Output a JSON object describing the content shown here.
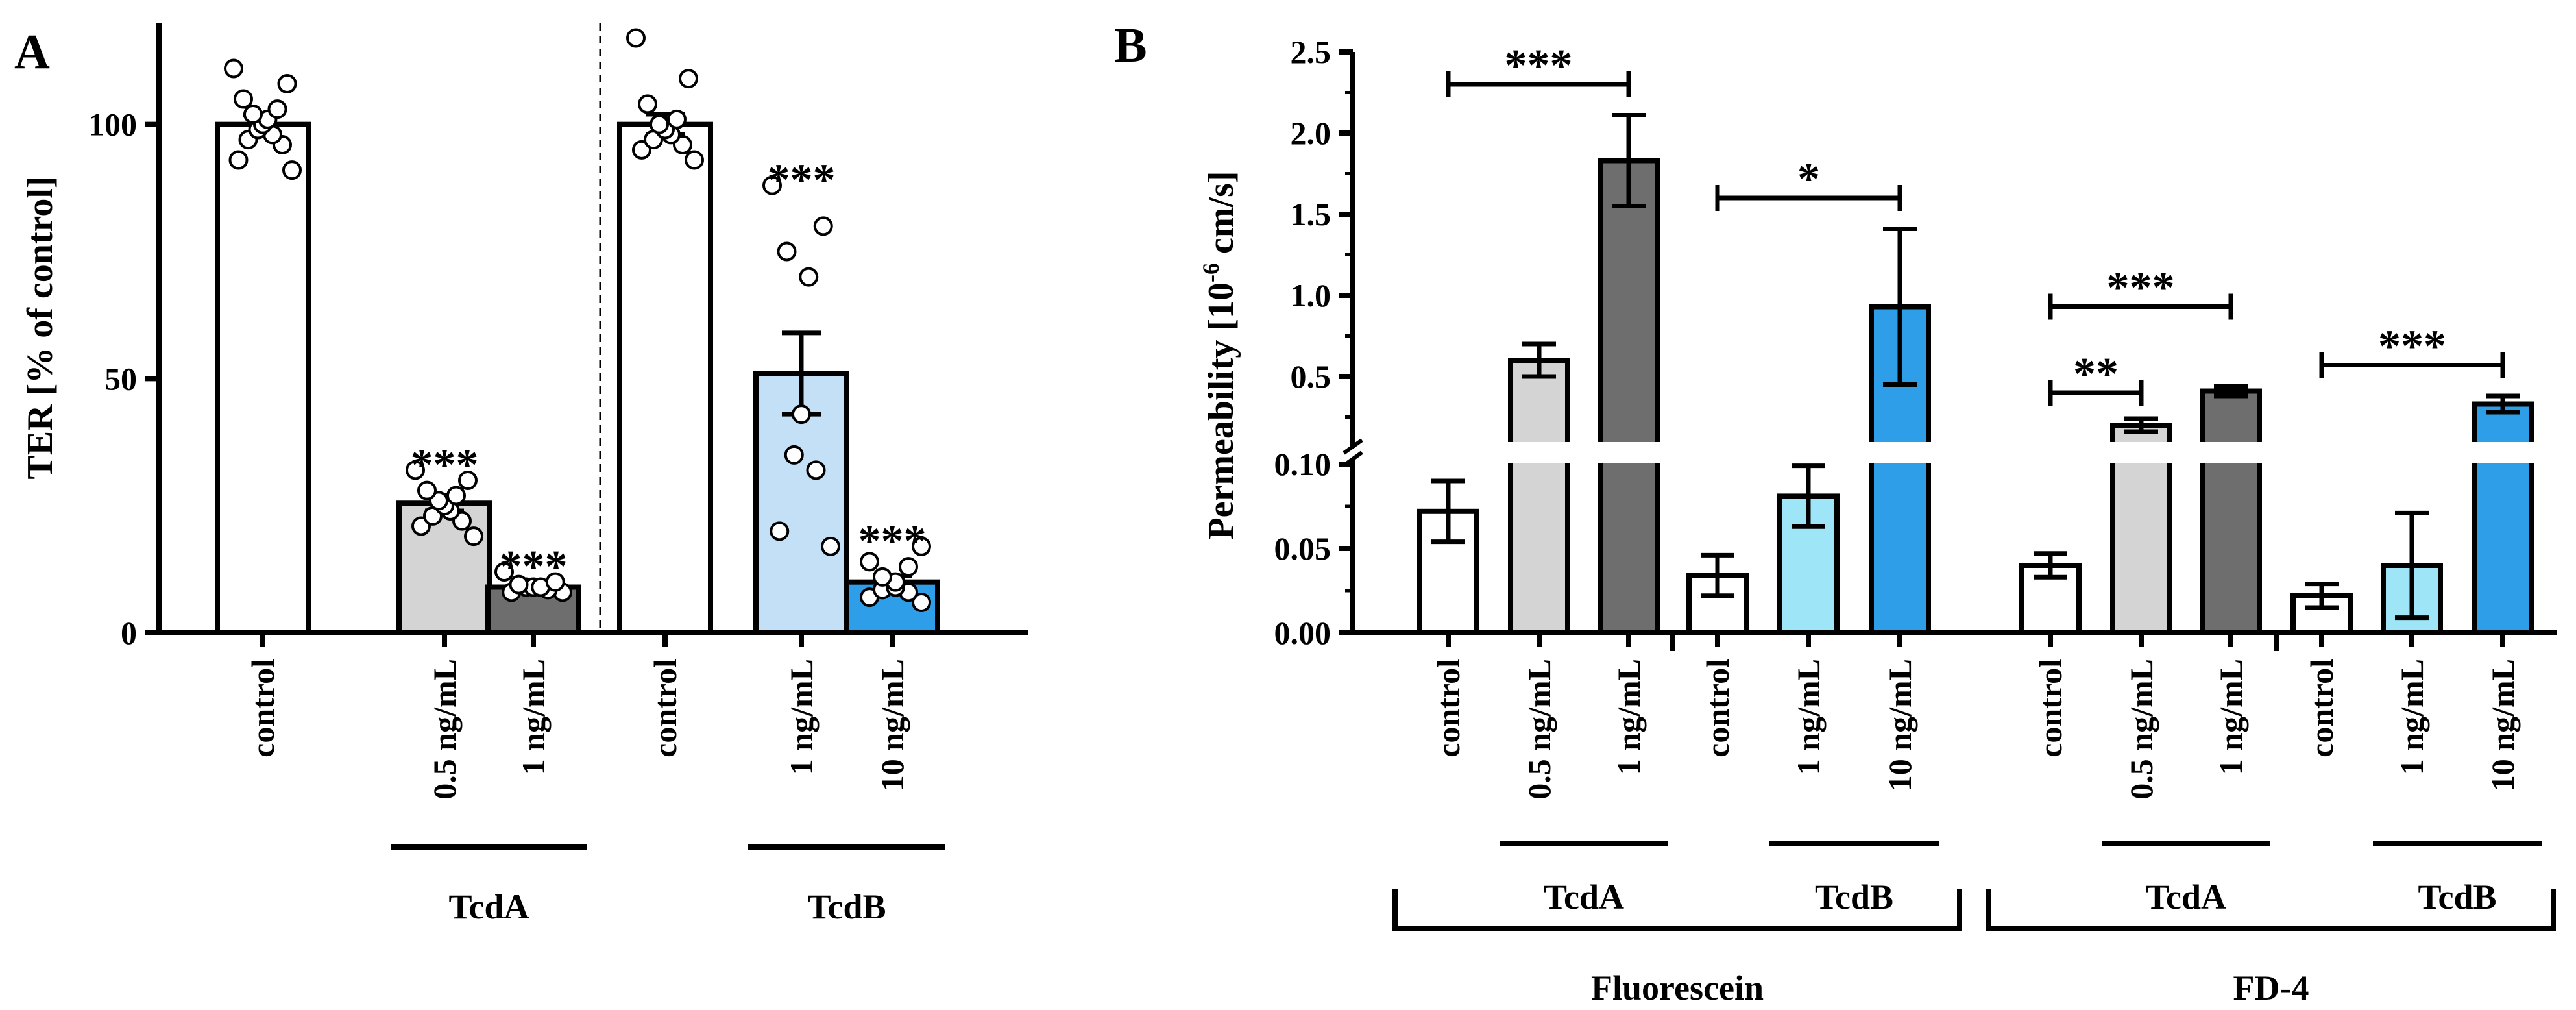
{
  "chart_data": [
    {
      "panel": "A",
      "type": "bar",
      "ylabel": "TER [% of control]",
      "ylim": [
        0,
        120
      ],
      "yticks": [
        0,
        50,
        100
      ],
      "groups": [
        {
          "label": "TcdA",
          "members": [
            1,
            2
          ]
        },
        {
          "label": "TcdB",
          "members": [
            4,
            5
          ]
        }
      ],
      "bars": [
        {
          "category": "control",
          "value": 100,
          "sem": 1.8,
          "color": "#ffffff",
          "points": [
            91,
            93,
            96,
            97,
            98,
            99,
            100,
            101,
            102,
            103,
            105,
            108,
            111
          ]
        },
        {
          "category": "0.5 ng/mL",
          "value": 25.5,
          "sem": 1.5,
          "color": "#d4d4d4",
          "sig": "***",
          "points": [
            19,
            21,
            22,
            23,
            24,
            25,
            26,
            27,
            28,
            30,
            32
          ]
        },
        {
          "category": "1 ng/mL",
          "value": 9,
          "sem": 0.6,
          "color": "#6e6e6e",
          "sig": "***",
          "points": [
            8,
            8,
            8.5,
            9,
            9,
            9,
            9.5,
            10,
            12
          ]
        },
        {
          "category": "control",
          "value": 100,
          "sem": 2.0,
          "color": "#ffffff",
          "points": [
            93,
            95,
            96,
            97,
            98,
            99,
            100,
            101,
            104,
            109,
            117
          ]
        },
        {
          "category": "1 ng/mL",
          "value": 51,
          "sem": 8,
          "color": "#c4e0f7",
          "sig": "***",
          "points": [
            17,
            20,
            32,
            35,
            43,
            70,
            75,
            80,
            88
          ]
        },
        {
          "category": "10 ng/mL",
          "value": 10,
          "sem": 1.2,
          "color": "#2f9ee8",
          "sig": "***",
          "points": [
            6,
            7,
            8,
            8.5,
            9,
            10,
            11,
            13,
            14,
            17
          ]
        }
      ]
    },
    {
      "panel": "B",
      "type": "bar",
      "ylabel": "Permeability [10",
      "ylabel_exp": "-6",
      "ylabel_unit": " cm/s]",
      "y_break": {
        "lower_range": [
          0,
          0.1
        ],
        "upper_range": [
          0.1,
          2.5
        ]
      },
      "yticks_lower": [
        "0.00",
        "0.05",
        "0.10"
      ],
      "yticks_upper": [
        "0.5",
        "1.0",
        "1.5",
        "2.0",
        "2.5"
      ],
      "tracers": [
        {
          "label": "Fluorescein",
          "members": [
            0,
            1,
            2,
            3,
            4,
            5
          ]
        },
        {
          "label": "FD-4",
          "members": [
            6,
            7,
            8,
            9,
            10,
            11
          ]
        }
      ],
      "toxin_groups": [
        {
          "label": "TcdA",
          "members": [
            1,
            2
          ]
        },
        {
          "label": "TcdB",
          "members": [
            4,
            5
          ]
        },
        {
          "label": "TcdA",
          "members": [
            7,
            8
          ]
        },
        {
          "label": "TcdB",
          "members": [
            10,
            11
          ]
        }
      ],
      "bars": [
        {
          "category": "control",
          "value": 0.072,
          "err": 0.018,
          "color": "#ffffff"
        },
        {
          "category": "0.5 ng/mL",
          "value": 0.6,
          "err": 0.1,
          "color": "#d4d4d4"
        },
        {
          "category": "1 ng/mL",
          "value": 1.83,
          "err": 0.28,
          "color": "#6e6e6e"
        },
        {
          "category": "control",
          "value": 0.034,
          "err": 0.012,
          "color": "#ffffff"
        },
        {
          "category": "1 ng/mL",
          "value": 0.081,
          "err": 0.018,
          "color": "#9ee6f7"
        },
        {
          "category": "10 ng/mL",
          "value": 0.93,
          "err": 0.48,
          "color": "#2f9ee8"
        },
        {
          "category": "control",
          "value": 0.04,
          "err": 0.007,
          "color": "#ffffff"
        },
        {
          "category": "0.5 ng/mL",
          "value": 0.2,
          "err": 0.04,
          "color": "#d4d4d4"
        },
        {
          "category": "1 ng/mL",
          "value": 0.41,
          "err": 0.03,
          "color": "#6e6e6e"
        },
        {
          "category": "control",
          "value": 0.022,
          "err": 0.007,
          "color": "#ffffff"
        },
        {
          "category": "1 ng/mL",
          "value": 0.04,
          "err": 0.031,
          "color": "#9ee6f7"
        },
        {
          "category": "10 ng/mL",
          "value": 0.33,
          "err": 0.05,
          "color": "#2f9ee8"
        }
      ],
      "brackets": [
        {
          "from": 0,
          "to": 2,
          "value": 2.3,
          "label": "***"
        },
        {
          "from": 3,
          "to": 5,
          "value": 1.6,
          "label": "*"
        },
        {
          "from": 6,
          "to": 8,
          "value": 0.93,
          "label": "***"
        },
        {
          "from": 6,
          "to": 7,
          "value": 0.4,
          "label": "**"
        },
        {
          "from": 9,
          "to": 11,
          "value": 0.57,
          "label": "***"
        }
      ]
    }
  ]
}
